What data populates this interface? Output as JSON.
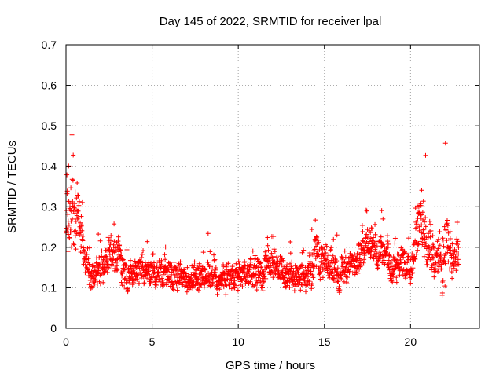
{
  "chart_data": {
    "type": "scatter",
    "title": "Day 145 of 2022, SRMTID for receiver lpal",
    "xlabel": "GPS time / hours",
    "ylabel": "SRMTID / TECUs",
    "xlim": [
      0,
      24
    ],
    "ylim": [
      0,
      0.7
    ],
    "x_ticks": [
      0,
      5,
      10,
      15,
      20
    ],
    "x_tick_labels": [
      "0",
      "5",
      "10",
      "15",
      "20"
    ],
    "y_ticks": [
      0,
      0.1,
      0.2,
      0.3,
      0.4,
      0.5,
      0.6,
      0.7
    ],
    "y_tick_labels": [
      "0",
      "0.1",
      "0.2",
      "0.3",
      "0.4",
      "0.5",
      "0.6",
      "0.7"
    ],
    "grid": true,
    "marker": "plus",
    "series_color": "#ff0000",
    "x_range_data": [
      0,
      22.8
    ],
    "series": [
      {
        "name": "SRMTID",
        "note": "about 1800 plus-markers; envelope estimated from the plot",
        "profile_hours": [
          0,
          0.2,
          0.4,
          0.6,
          0.8,
          1.0,
          1.5,
          2.0,
          2.5,
          3.0,
          3.3,
          3.6,
          4.0,
          5.0,
          6.0,
          7.0,
          8.0,
          9.0,
          10.0,
          11.0,
          12.0,
          13.0,
          14.0,
          14.5,
          15.0,
          16.0,
          17.0,
          17.5,
          18.0,
          19.0,
          20.0,
          20.5,
          21.0,
          21.5,
          22.0,
          22.5,
          22.8
        ],
        "profile_level": [
          0.28,
          0.3,
          0.32,
          0.28,
          0.24,
          0.19,
          0.13,
          0.14,
          0.17,
          0.18,
          0.13,
          0.12,
          0.14,
          0.14,
          0.14,
          0.12,
          0.13,
          0.13,
          0.12,
          0.14,
          0.16,
          0.12,
          0.13,
          0.18,
          0.16,
          0.14,
          0.16,
          0.22,
          0.2,
          0.15,
          0.17,
          0.26,
          0.22,
          0.16,
          0.2,
          0.18,
          0.18
        ],
        "profile_spread": [
          0.14,
          0.22,
          0.28,
          0.18,
          0.12,
          0.08,
          0.06,
          0.07,
          0.08,
          0.08,
          0.07,
          0.06,
          0.06,
          0.06,
          0.06,
          0.06,
          0.06,
          0.06,
          0.06,
          0.07,
          0.07,
          0.06,
          0.06,
          0.09,
          0.07,
          0.06,
          0.07,
          0.07,
          0.07,
          0.06,
          0.07,
          0.14,
          0.12,
          0.07,
          0.16,
          0.08,
          0.08
        ]
      }
    ]
  }
}
